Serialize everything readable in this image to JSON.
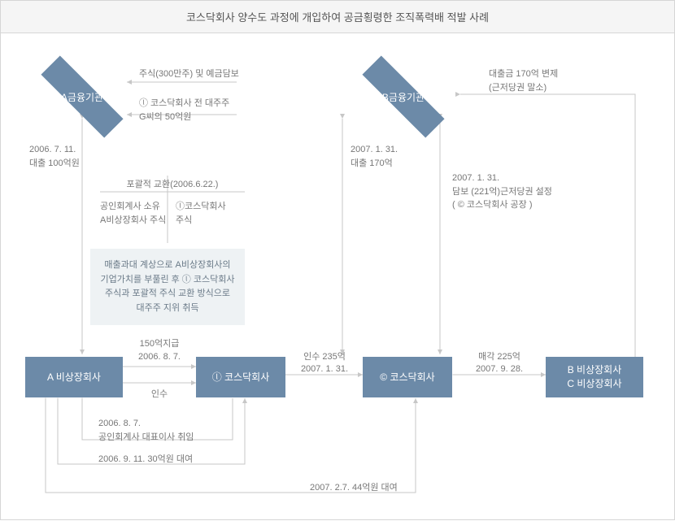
{
  "colors": {
    "box": "#6c8aa8",
    "note_bg": "#eef2f4",
    "note_text": "#6a7a88",
    "line": "#c7c7c7",
    "text": "#777777"
  },
  "title": "코스닥회사 양수도 과정에 개입하여 공금횡령한 조직폭력배 적발 사례",
  "nodes": {
    "fiA": "A금융기관",
    "fiB": "B금융기관",
    "coA": "A 비상장회사",
    "coL": "ⓛ 코스닥회사",
    "coC": "© 코스닥회사",
    "coBC1": "B 비상장회사",
    "coBC2": "C 비상장회사"
  },
  "labels": {
    "loan100": "2006. 7. 11.\n대출 100억원",
    "stockDeposit": "주식(300만주) 및 예금담보",
    "gOwner": "ⓛ 코스닥회사 전 대주주\nG씨의 50억원",
    "swap": "포괄적 교환(2006.6.22.)",
    "swapLeft": "공인회계사 소유\nA비상장회사 주식",
    "swapRight": "ⓛ코스닥회사\n주식",
    "note": "매출과대 계상으로 A비상장회사의\n기업가치를 부풀린 후 ⓛ 코스닥회사\n주식과 포괄적 주식 교환 방식으로\n대주주 지위 취득",
    "pay150top": "150억지급",
    "pay150bot": "2006. 8. 7.",
    "acq": "인수",
    "ceo": "2006. 8. 7.\n공인회계사 대표이사 취임",
    "loan30": "2006. 9. 11. 30억원 대여",
    "loan170": "2007. 1. 31.\n대출 170억",
    "relief": "대출금 170억 변제\n(근저당권 말소)",
    "collat": "2007. 1. 31.\n담보 (221억)근저당권 설정\n( © 코스닥회사 공장 )",
    "acq235top": "인수 235억",
    "acq235bot": "2007. 1. 31.",
    "sale225top": "매각 225억",
    "sale225bot": "2007. 9. 28.",
    "loan44": "2007. 2.7. 44억원 대여"
  }
}
